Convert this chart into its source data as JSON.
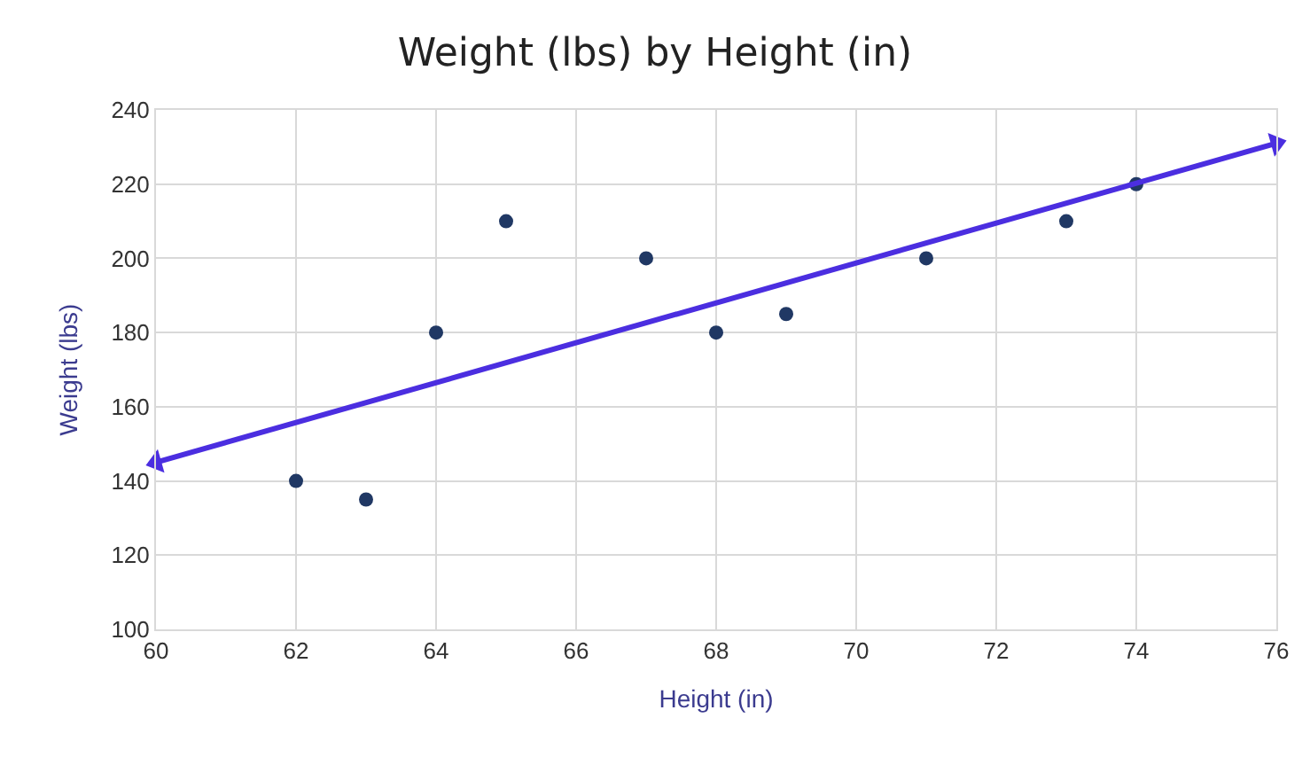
{
  "chart_data": {
    "type": "scatter",
    "title": "Weight (lbs) by Height (in)",
    "xlabel": "Height (in)",
    "ylabel": "Weight (lbs)",
    "xlim": [
      60,
      76
    ],
    "xticks": [
      60,
      62,
      64,
      66,
      68,
      70,
      72,
      74,
      76
    ],
    "ylim": [
      100,
      240
    ],
    "yticks": [
      100,
      120,
      140,
      160,
      180,
      200,
      220,
      240
    ],
    "grid": true,
    "series": [
      {
        "marker": "circle",
        "color": "#203864",
        "x": [
          62,
          63,
          64,
          65,
          67,
          68,
          69,
          71,
          73,
          74
        ],
        "values": [
          140,
          135,
          180,
          210,
          200,
          180,
          185,
          200,
          210,
          220
        ]
      },
      {
        "type": "line",
        "marker": "triangle",
        "color": "#4b2ee0",
        "x": [
          60,
          76
        ],
        "values": [
          145,
          231
        ]
      }
    ]
  }
}
